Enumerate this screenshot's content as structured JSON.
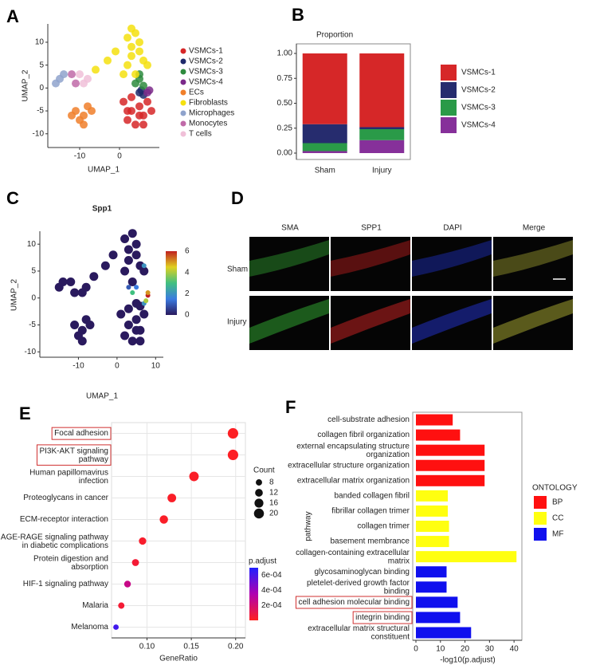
{
  "panel_labels": [
    "A",
    "B",
    "C",
    "D",
    "E",
    "F"
  ],
  "micrographs": {
    "columns": [
      "SMA",
      "SPP1",
      "DAPI",
      "Merge"
    ],
    "rows": [
      "Sham",
      "Injury"
    ]
  },
  "chart_data": [
    {
      "type": "scatter",
      "x_label": "UMAP_1",
      "y_label": "UMAP_2",
      "xlim": [
        -18,
        10
      ],
      "xticks": [
        -10,
        0
      ],
      "ylim": [
        -13,
        14
      ],
      "yticks": [
        -10,
        -5,
        0,
        5,
        10
      ],
      "series": [
        {
          "name": "VSMCs-1",
          "color": "#d62728",
          "x": [
            1,
            3,
            5,
            6,
            7,
            2,
            4,
            8,
            3,
            6,
            5,
            2
          ],
          "y": [
            -3,
            -5,
            -4,
            -6,
            -3,
            -7,
            -8,
            -5,
            -2,
            -8,
            -6,
            -5
          ]
        },
        {
          "name": "VSMCs-2",
          "color": "#1f2a6b",
          "x": [
            5,
            6,
            5.5
          ],
          "y": [
            -1,
            -1.5,
            -0.5
          ]
        },
        {
          "name": "VSMCs-3",
          "color": "#2e8b3e",
          "x": [
            4,
            5,
            6,
            5
          ],
          "y": [
            1,
            2,
            0.5,
            3
          ]
        },
        {
          "name": "VSMCs-4",
          "color": "#7b2a8a",
          "x": [
            7,
            7.5
          ],
          "y": [
            -1,
            -0.5
          ]
        },
        {
          "name": "ECs",
          "color": "#f07f2a",
          "x": [
            -11,
            -9,
            -8,
            -10,
            -7,
            -9,
            -12
          ],
          "y": [
            -5,
            -6,
            -4,
            -7,
            -5,
            -8,
            -6
          ]
        },
        {
          "name": "Fibroblasts",
          "color": "#f5e10f",
          "x": [
            2,
            3,
            4,
            3,
            5,
            6,
            2,
            7,
            -1,
            -3,
            -6,
            4,
            1,
            3,
            5
          ],
          "y": [
            11,
            9,
            12,
            7,
            10,
            6,
            5,
            5,
            8,
            6,
            4,
            3,
            3,
            13,
            8
          ]
        },
        {
          "name": "Microphages",
          "color": "#8fa3cc",
          "x": [
            -15,
            -14,
            -16
          ],
          "y": [
            2,
            3,
            1
          ]
        },
        {
          "name": "Monocytes",
          "color": "#c06aa8",
          "x": [
            -12,
            -11
          ],
          "y": [
            3,
            1
          ]
        },
        {
          "name": "T cells",
          "color": "#f0c0d8",
          "x": [
            -9,
            -8,
            -10
          ],
          "y": [
            1,
            2,
            3
          ]
        }
      ]
    },
    {
      "type": "stacked_bar",
      "title": "Proportion",
      "categories": [
        "Sham",
        "Injury"
      ],
      "ylim": [
        -0.064,
        1.096
      ],
      "yticks": [
        {
          "value": 0,
          "label": "0.00"
        },
        {
          "value": 0.25,
          "label": "0.25"
        },
        {
          "value": 0.5,
          "label": "0.50"
        },
        {
          "value": 0.75,
          "label": "0.75"
        },
        {
          "value": 1,
          "label": "1.00"
        }
      ],
      "series": [
        {
          "name": "VSMCs-1",
          "color": "#d62728",
          "values": [
            0.71,
            0.74
          ]
        },
        {
          "name": "VSMCs-2",
          "color": "#262c6e",
          "values": [
            0.19,
            0.02
          ]
        },
        {
          "name": "VSMCs-3",
          "color": "#2a9a48",
          "values": [
            0.08,
            0.11
          ]
        },
        {
          "name": "VSMCs-4",
          "color": "#86309a",
          "values": [
            0.02,
            0.13
          ]
        }
      ]
    },
    {
      "type": "feature_scatter",
      "title": "Spp1",
      "x_label": "UMAP_1",
      "y_label": "UMAP_2",
      "xlim": [
        -20,
        12
      ],
      "xticks": [
        -10,
        0,
        10
      ],
      "ylim": [
        -11,
        12.4
      ],
      "yticks": [
        -10,
        -5,
        0,
        5,
        10
      ],
      "color_lim": [
        0,
        6
      ],
      "color_ticks": [
        0,
        2,
        4,
        6
      ],
      "x": [
        1,
        3,
        5,
        6,
        7,
        2,
        4,
        3,
        6,
        5,
        5,
        6,
        7,
        7.5,
        8,
        -11,
        -9,
        -8,
        -10,
        -7,
        -9,
        2,
        3,
        4,
        3,
        5,
        6,
        2,
        7,
        -1,
        -3,
        -6,
        4,
        3,
        5,
        -15,
        -14,
        -12,
        -11,
        -9,
        -8,
        4,
        5,
        8,
        7
      ],
      "y": [
        -3,
        -5,
        -4,
        -6,
        -3,
        -7,
        -8,
        -2,
        -8,
        -6,
        -1,
        -1.5,
        -1,
        -0.5,
        0.5,
        -5,
        -6,
        -4,
        -7,
        -5,
        -8,
        11,
        9,
        12,
        7,
        10,
        6,
        5,
        5,
        8,
        6,
        4,
        3,
        2,
        8,
        2,
        3,
        3,
        1,
        1,
        2,
        1,
        2,
        1,
        6
      ],
      "values": [
        0,
        0,
        0,
        0,
        0,
        0,
        0,
        0,
        0,
        0,
        0,
        0,
        2,
        4,
        6,
        0,
        0,
        0,
        0,
        0,
        0,
        0,
        0,
        0,
        0,
        0,
        0,
        0,
        0,
        0,
        0,
        0,
        0,
        1,
        0,
        0,
        0,
        0,
        0,
        0,
        0,
        3,
        1.5,
        5,
        2
      ]
    },
    {
      "type": "dot",
      "x_label": "GeneRatio",
      "categories": [
        "Focal adhesion",
        "PI3K-AKT signaling\npathway",
        "Human papillomavirus\ninfection",
        "Proteoglycans in cancer",
        "ECM-receptor interaction",
        "AGE-RAGE signaling pathway\nin diabetic complications",
        "Protein digestion and\nabsorption",
        "HIF-1 signaling pathway",
        "Malaria",
        "Melanoma"
      ],
      "highlight_indices": [
        0,
        1
      ],
      "values": [
        0.197,
        0.197,
        0.153,
        0.128,
        0.119,
        0.095,
        0.087,
        0.078,
        0.071,
        0.065
      ],
      "count": [
        22,
        22,
        18,
        15,
        14,
        11,
        10,
        9,
        8,
        6
      ],
      "p_adjust": [
        1e-05,
        1e-05,
        2e-05,
        2e-05,
        2e-05,
        3e-05,
        5e-05,
        0.00025,
        5e-05,
        0.00062
      ],
      "xlim": [
        0.06,
        0.211
      ],
      "xticks": [
        {
          "value": 0.1,
          "label": "0.10"
        },
        {
          "value": 0.15,
          "label": "0.15"
        },
        {
          "value": 0.2,
          "label": "0.20"
        }
      ],
      "size_title": "Count",
      "size_ticks": [
        8,
        12,
        16,
        20
      ],
      "color_title": "p.adjust",
      "color_lim": [
        0,
        0.0007
      ],
      "color_ticks": [
        {
          "value": 0.0006,
          "label": "6e-04"
        },
        {
          "value": 0.0004,
          "label": "4e-04"
        },
        {
          "value": 0.0002,
          "label": "2e-04"
        }
      ],
      "grid": true
    },
    {
      "type": "barh",
      "x_label": "-log10(p.adjust)",
      "y_label": "pathway",
      "legend_title": "ONTOLOGY",
      "categories": [
        "cell-substrate adhesion",
        "collagen fibril organization",
        "external encapsulating structure\norganization",
        "extracellular structure organization",
        "extracellular matrix organization",
        "banded collagen fibril",
        "fibrillar collagen trimer",
        "collagen trimer",
        "basement membrance",
        "collagen-containing extracellular\nmatrix",
        "glycosaminoglycan binding",
        "pletelet-derived growth factor\nbinding",
        "cell adhesion molecular binding",
        "integrin binding",
        "extracellular matrix structural\nconstituent"
      ],
      "values": [
        15,
        18,
        28,
        28,
        28,
        13,
        13,
        13.5,
        13.5,
        41,
        12.5,
        12.5,
        17,
        18,
        22.5
      ],
      "ontology": [
        "BP",
        "BP",
        "BP",
        "BP",
        "BP",
        "CC",
        "CC",
        "CC",
        "CC",
        "CC",
        "MF",
        "MF",
        "MF",
        "MF",
        "MF"
      ],
      "groups": [
        {
          "name": "BP",
          "color": "#ff1010"
        },
        {
          "name": "CC",
          "color": "#ffff10"
        },
        {
          "name": "MF",
          "color": "#1010ee"
        }
      ],
      "highlight_indices": [
        12,
        13
      ],
      "xlim": [
        -1.3,
        43.2
      ],
      "xticks": [
        0,
        10,
        20,
        30,
        40
      ]
    }
  ]
}
